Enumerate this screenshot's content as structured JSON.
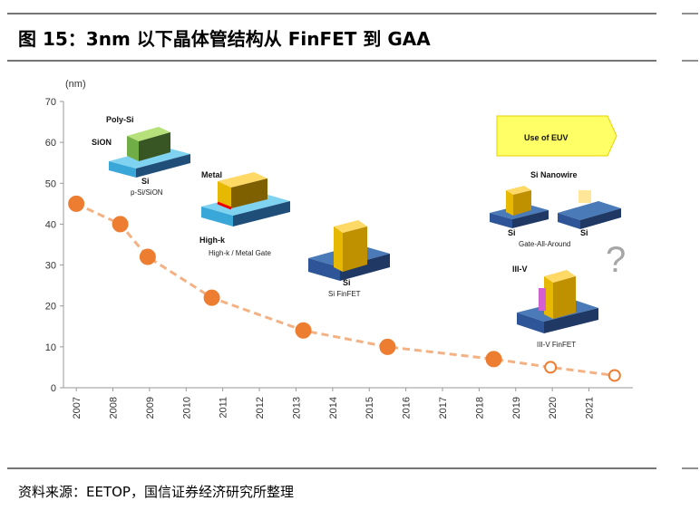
{
  "title": "图 15：3nm 以下晶体管结构从 FinFET 到 GAA",
  "source": "资料来源：EETOP，国信证券经济研究所整理",
  "chart_data": {
    "type": "line",
    "y_label": "(nm)",
    "xlim": [
      2006.65,
      2022.2
    ],
    "ylim": [
      0,
      70
    ],
    "xticks": [
      2007,
      2008,
      2009,
      2010,
      2011,
      2012,
      2013,
      2014,
      2015,
      2016,
      2017,
      2018,
      2019,
      2020,
      2021
    ],
    "yticks": [
      0,
      10,
      20,
      30,
      40,
      50,
      60,
      70
    ],
    "line_style": "dashed",
    "line_color": "#f4b183",
    "series": [
      {
        "color": "#ed7d31",
        "marker": "filled",
        "x": [
          2007,
          2008.2,
          2008.95,
          2010.7,
          2013.2,
          2015.5,
          2018.4
        ],
        "values": [
          45,
          40,
          32,
          22,
          14,
          10,
          7
        ]
      },
      {
        "color": "#ed7d31",
        "marker": "hollow",
        "x": [
          2019.95,
          2021.7
        ],
        "values": [
          5,
          3
        ]
      }
    ],
    "annotations": [
      "Poly-Si",
      "SiON",
      "Si",
      "p-Si/SiON",
      "Metal",
      "High-k",
      "High-k / Metal Gate",
      "Si",
      "Si FinFET",
      "Use of EUV",
      "Si Nanowire",
      "Si",
      "Si",
      "Gate-All-Around",
      "III-V",
      "III-V FinFET",
      "?"
    ]
  }
}
